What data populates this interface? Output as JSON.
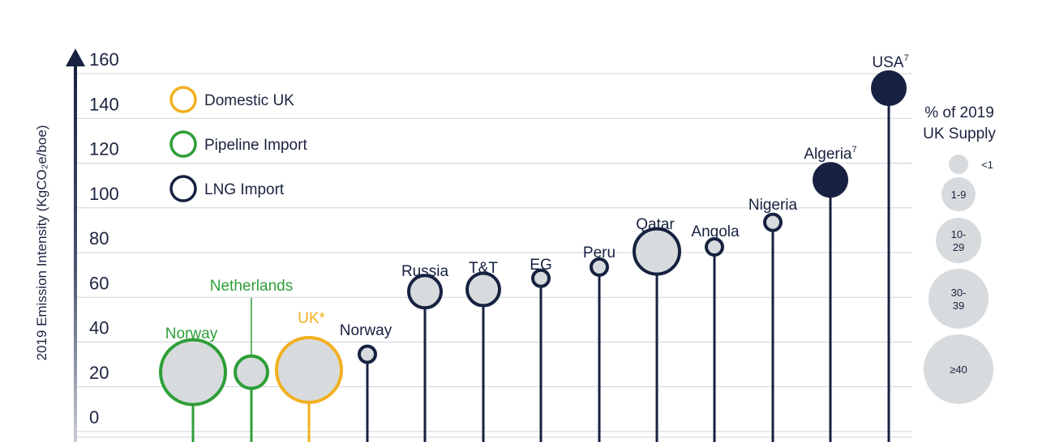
{
  "chart_data": {
    "type": "scatter",
    "ylabel": "2019 Emission Intensity (KgCO₂e/boe)",
    "ylim": [
      0,
      160
    ],
    "yticks": [
      0,
      20,
      40,
      60,
      80,
      100,
      120,
      140,
      160
    ],
    "grid": true,
    "legend": {
      "placement": "top-left",
      "items": [
        {
          "label": "Domestic UK",
          "color": "#f2b01e"
        },
        {
          "label": "Pipeline Import",
          "color": "#2e9e38"
        },
        {
          "label": "LNG Import",
          "color": "#172140"
        }
      ]
    },
    "points": [
      {
        "label": "Norway",
        "sup": "",
        "value": 20,
        "type": "pipeline",
        "size": "≥40",
        "filled": false
      },
      {
        "label": "Netherlands",
        "sup": "",
        "value": 20,
        "type": "pipeline",
        "size": "1-9",
        "filled": false
      },
      {
        "label": "UK*",
        "sup": "",
        "value": 21,
        "type": "domestic",
        "size": "≥40",
        "filled": false
      },
      {
        "label": "Norway",
        "sup": "",
        "value": 28,
        "type": "lng",
        "size": "<1",
        "filled": false
      },
      {
        "label": "Russia",
        "sup": "",
        "value": 56,
        "type": "lng",
        "size": "1-9",
        "filled": false
      },
      {
        "label": "T&T",
        "sup": "",
        "value": 57,
        "type": "lng",
        "size": "1-9",
        "filled": false
      },
      {
        "label": "EG",
        "sup": "",
        "value": 62,
        "type": "lng",
        "size": "<1",
        "filled": false
      },
      {
        "label": "Peru",
        "sup": "",
        "value": 67,
        "type": "lng",
        "size": "<1",
        "filled": false
      },
      {
        "label": "Qatar",
        "sup": "",
        "value": 74,
        "type": "lng",
        "size": "10-29",
        "filled": false
      },
      {
        "label": "Angola",
        "sup": "",
        "value": 76,
        "type": "lng",
        "size": "<1",
        "filled": false
      },
      {
        "label": "Nigeria",
        "sup": "",
        "value": 87,
        "type": "lng",
        "size": "<1",
        "filled": false
      },
      {
        "label": "Algeria",
        "sup": "7",
        "value": 106,
        "type": "lng",
        "size": "1-9",
        "filled": true
      },
      {
        "label": "USA",
        "sup": "7",
        "value": 147,
        "type": "lng",
        "size": "1-9",
        "filled": true
      }
    ],
    "size_legend": {
      "title": [
        "% of 2019",
        "UK Supply"
      ],
      "items": [
        {
          "label": [
            "<1"
          ]
        },
        {
          "label": [
            "1-9"
          ]
        },
        {
          "label": [
            "10-",
            "29"
          ]
        },
        {
          "label": [
            "30-",
            "39"
          ]
        },
        {
          "label": [
            "≥40"
          ]
        }
      ]
    },
    "colors": {
      "domestic": "#f2b01e",
      "pipeline": "#2e9e38",
      "lng": "#172140",
      "bubble_fill": "#d7dbdd",
      "grid": "#cfd3d8",
      "axis": "#172140"
    }
  }
}
